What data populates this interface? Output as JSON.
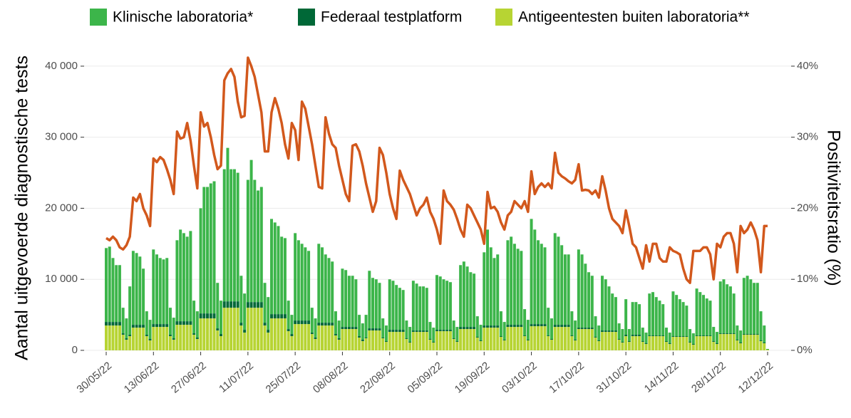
{
  "chart_data": {
    "type": "bar",
    "ylabel": "Aantal uitgevoerde diagnostische tests",
    "y2label": "Positiviteitsratio (%)",
    "categories": [
      "30/05/22",
      null,
      null,
      null,
      null,
      null,
      null,
      null,
      null,
      null,
      null,
      null,
      null,
      null,
      "13/06/22",
      null,
      null,
      null,
      null,
      null,
      null,
      null,
      null,
      null,
      null,
      null,
      null,
      null,
      "27/06/22",
      null,
      null,
      null,
      null,
      null,
      null,
      null,
      null,
      null,
      null,
      null,
      null,
      null,
      "11/07/22",
      null,
      null,
      null,
      null,
      null,
      null,
      null,
      null,
      null,
      null,
      null,
      null,
      null,
      "25/07/22",
      null,
      null,
      null,
      null,
      null,
      null,
      null,
      null,
      null,
      null,
      null,
      null,
      null,
      "08/08/22",
      null,
      null,
      null,
      null,
      null,
      null,
      null,
      null,
      null,
      null,
      null,
      null,
      null,
      "22/08/22",
      null,
      null,
      null,
      null,
      null,
      null,
      null,
      null,
      null,
      null,
      null,
      null,
      null,
      "05/09/22",
      null,
      null,
      null,
      null,
      null,
      null,
      null,
      null,
      null,
      null,
      null,
      null,
      null,
      "19/09/22",
      null,
      null,
      null,
      null,
      null,
      null,
      null,
      null,
      null,
      null,
      null,
      null,
      null,
      "03/10/22",
      null,
      null,
      null,
      null,
      null,
      null,
      null,
      null,
      null,
      null,
      null,
      null,
      null,
      "17/10/22",
      null,
      null,
      null,
      null,
      null,
      null,
      null,
      null,
      null,
      null,
      null,
      null,
      null,
      "31/10/22",
      null,
      null,
      null,
      null,
      null,
      null,
      null,
      null,
      null,
      null,
      null,
      null,
      null,
      "14/11/22",
      null,
      null,
      null,
      null,
      null,
      null,
      null,
      null,
      null,
      null,
      null,
      null,
      null,
      "28/11/22",
      null,
      null,
      null,
      null,
      null,
      null,
      null,
      null,
      null,
      null,
      null,
      null,
      null,
      "12/12/22"
    ],
    "series": [
      {
        "name": "Klinische laboratoria*",
        "color": "#3cb54a",
        "values": [
          10400,
          10600,
          9000,
          8000,
          8000,
          3600,
          2800,
          6800,
          10400,
          10100,
          9600,
          7900,
          3300,
          2700,
          10500,
          9800,
          9300,
          9100,
          9300,
          3800,
          2900,
          11400,
          12900,
          12400,
          11900,
          12700,
          4600,
          3700,
          14800,
          17800,
          17800,
          18300,
          18600,
          6400,
          4700,
          18600,
          21600,
          18600,
          18600,
          18100,
          6600,
          5100,
          17200,
          20000,
          17200,
          15700,
          16200,
          5600,
          4600,
          13400,
          12900,
          12400,
          10900,
          10700,
          4000,
          2700,
          12300,
          11300,
          10800,
          10300,
          9800,
          3500,
          2700,
          11100,
          10600,
          9600,
          9100,
          8600,
          3200,
          2500,
          8200,
          8000,
          7200,
          7200,
          6700,
          3000,
          2300,
          3200,
          8100,
          7100,
          6900,
          6400,
          2700,
          2200,
          7100,
          6900,
          6300,
          5900,
          5600,
          2500,
          2100,
          7000,
          6600,
          6200,
          6200,
          6000,
          2400,
          2000,
          7700,
          7500,
          7100,
          6900,
          6700,
          2500,
          2000,
          8700,
          9200,
          8500,
          7700,
          7500,
          2900,
          2200,
          10300,
          13500,
          11000,
          9500,
          10000,
          3500,
          2500,
          11900,
          12400,
          11400,
          10700,
          10400,
          3700,
          2800,
          14800,
          13300,
          11800,
          11300,
          10800,
          3900,
          2900,
          12900,
          12400,
          11200,
          9900,
          9900,
          3400,
          2700,
          11000,
          10300,
          9000,
          7800,
          7300,
          2900,
          2100,
          7700,
          7200,
          6200,
          5200,
          4700,
          2200,
          1800,
          5000,
          1700,
          4600,
          4600,
          4300,
          1900,
          1500,
          5900,
          6100,
          5400,
          4900,
          4400,
          1900,
          1500,
          6300,
          5800,
          5200,
          4800,
          4300,
          1800,
          1500,
          6600,
          6100,
          5700,
          5200,
          4900,
          2000,
          1600,
          7300,
          7600,
          6900,
          6600,
          5600,
          2000,
          1700,
          7900,
          8200,
          7700,
          7200,
          7200,
          4100,
          2400,
          100
        ]
      },
      {
        "name": "Federaal testplatform",
        "color": "#006837",
        "values": [
          500,
          500,
          500,
          500,
          500,
          200,
          200,
          200,
          400,
          400,
          400,
          400,
          200,
          200,
          400,
          400,
          400,
          400,
          400,
          200,
          200,
          500,
          500,
          500,
          500,
          500,
          200,
          200,
          700,
          700,
          700,
          700,
          700,
          300,
          300,
          900,
          900,
          900,
          900,
          900,
          400,
          400,
          800,
          800,
          800,
          800,
          800,
          400,
          400,
          600,
          600,
          600,
          600,
          600,
          300,
          300,
          500,
          500,
          500,
          500,
          500,
          200,
          200,
          400,
          400,
          400,
          400,
          400,
          200,
          200,
          300,
          300,
          300,
          300,
          300,
          200,
          200,
          100,
          300,
          300,
          300,
          300,
          100,
          100,
          300,
          300,
          300,
          300,
          300,
          100,
          100,
          200,
          200,
          200,
          200,
          200,
          100,
          100,
          200,
          200,
          200,
          200,
          200,
          100,
          100,
          300,
          300,
          300,
          300,
          300,
          100,
          100,
          300,
          300,
          300,
          300,
          300,
          100,
          100,
          300,
          300,
          300,
          300,
          300,
          100,
          100,
          300,
          300,
          300,
          300,
          300,
          100,
          100,
          300,
          300,
          300,
          300,
          300,
          100,
          100,
          200,
          200,
          200,
          200,
          200,
          100,
          100,
          200,
          200,
          200,
          200,
          200,
          100,
          100,
          200,
          100,
          200,
          200,
          200,
          100,
          100,
          100,
          100,
          100,
          100,
          100,
          100,
          100,
          100,
          100,
          100,
          100,
          100,
          100,
          100,
          100,
          100,
          100,
          100,
          100,
          100,
          100,
          100,
          100,
          100,
          100,
          100,
          100,
          100,
          100,
          100,
          100,
          100,
          100,
          100,
          100,
          0
        ]
      },
      {
        "name": "Antigeentesten buiten laboratoria**",
        "color": "#b7d433",
        "values": [
          3500,
          3500,
          3500,
          3500,
          3500,
          2200,
          1500,
          2000,
          3200,
          3200,
          3200,
          3200,
          2000,
          1400,
          3300,
          3300,
          3300,
          3300,
          3300,
          2000,
          1500,
          3600,
          3600,
          3600,
          3600,
          3600,
          2200,
          1600,
          4500,
          4500,
          4500,
          4500,
          4500,
          2800,
          2000,
          6000,
          6000,
          6000,
          6000,
          6000,
          3500,
          2500,
          6000,
          6000,
          6000,
          6000,
          6000,
          3500,
          2500,
          4500,
          4500,
          4500,
          4500,
          4500,
          2700,
          2000,
          3700,
          3700,
          3700,
          3700,
          3700,
          2300,
          1600,
          3500,
          3500,
          3500,
          3500,
          3500,
          2100,
          1500,
          3000,
          3000,
          3000,
          3000,
          3000,
          1800,
          1300,
          1700,
          2800,
          2800,
          2800,
          2800,
          1700,
          1200,
          2600,
          2600,
          2600,
          2600,
          2600,
          1600,
          1100,
          2600,
          2600,
          2600,
          2600,
          2600,
          1500,
          1100,
          2700,
          2700,
          2700,
          2700,
          2700,
          1600,
          1200,
          3000,
          3000,
          3000,
          3000,
          3000,
          1800,
          1300,
          3200,
          3200,
          3200,
          3200,
          3200,
          1900,
          1400,
          3300,
          3300,
          3300,
          3300,
          3300,
          2000,
          1400,
          3400,
          3400,
          3400,
          3400,
          3400,
          2000,
          1500,
          3300,
          3300,
          3300,
          3300,
          3300,
          2000,
          1400,
          3000,
          3000,
          3000,
          3000,
          3000,
          1800,
          1300,
          2600,
          2600,
          2600,
          2600,
          2600,
          1500,
          1100,
          2000,
          1200,
          2000,
          2000,
          2000,
          1200,
          900,
          2000,
          2000,
          2000,
          2000,
          2000,
          1200,
          900,
          1900,
          1900,
          1900,
          1900,
          1900,
          1100,
          800,
          2000,
          2000,
          2000,
          2000,
          2000,
          1200,
          900,
          2300,
          2300,
          2300,
          2300,
          2300,
          1400,
          1000,
          2200,
          2200,
          2200,
          2200,
          2200,
          1300,
          1000,
          100
        ]
      },
      {
        "type": "line",
        "axis": "y2",
        "color": "#d2581c",
        "values": [
          15.8,
          15.5,
          16.0,
          15.5,
          14.5,
          14.2,
          14.8,
          16.0,
          21.5,
          21.0,
          22.0,
          20.0,
          19.0,
          17.5,
          27.0,
          26.5,
          27.2,
          26.8,
          25.5,
          24.0,
          22.0,
          30.8,
          29.8,
          30.0,
          32.0,
          29.5,
          26.0,
          22.8,
          33.5,
          31.5,
          32.0,
          30.0,
          27.5,
          25.5,
          26.0,
          38.0,
          39.0,
          39.6,
          38.5,
          35.0,
          32.8,
          33.0,
          41.2,
          40.0,
          38.5,
          36.0,
          33.5,
          28.0,
          28.0,
          33.5,
          35.5,
          34.0,
          32.0,
          29.0,
          27.0,
          32.0,
          31.0,
          26.8,
          35.0,
          34.0,
          31.5,
          29.0,
          26.0,
          23.0,
          22.8,
          32.8,
          30.5,
          29.0,
          28.5,
          26.0,
          24.0,
          22.0,
          21.0,
          28.8,
          29.0,
          28.0,
          26.0,
          23.5,
          21.5,
          19.5,
          21.0,
          28.5,
          27.5,
          25.0,
          22.0,
          20.0,
          18.5,
          25.3,
          24.0,
          23.0,
          22.0,
          20.5,
          19.0,
          20.0,
          20.5,
          21.5,
          19.5,
          18.5,
          17.0,
          15.0,
          22.5,
          21.0,
          20.5,
          19.8,
          18.5,
          17.0,
          16.0,
          20.5,
          20.0,
          19.0,
          18.0,
          17.0,
          15.0,
          22.3,
          20.0,
          20.2,
          19.5,
          18.0,
          17.0,
          19.0,
          19.5,
          21.0,
          20.5,
          20.0,
          21.0,
          19.5,
          25.2,
          22.0,
          23.0,
          23.5,
          23.0,
          23.5,
          22.8,
          27.8,
          25.0,
          24.5,
          24.2,
          23.8,
          23.5,
          24.0,
          26.2,
          22.5,
          22.6,
          22.5,
          22.0,
          22.5,
          21.5,
          24.5,
          22.5,
          20.0,
          18.5,
          18.0,
          17.5,
          16.5,
          19.7,
          17.5,
          15.0,
          14.5,
          13.0,
          11.5,
          14.8,
          12.5,
          15.0,
          15.0,
          13.0,
          12.5,
          12.5,
          14.5,
          14.0,
          13.8,
          13.5,
          11.5,
          10.0,
          9.5,
          14.0,
          14.0,
          14.0,
          14.5,
          14.5,
          13.5,
          10.0,
          15.0,
          14.5,
          16.0,
          16.5,
          16.5,
          15.0,
          11.0,
          17.5,
          16.5,
          17.0,
          18.0,
          17.0,
          15.5,
          11.0,
          17.5,
          17.5
        ]
      }
    ],
    "ylim": [
      0,
      43500
    ],
    "yticks": [
      0,
      {
        "value": 10000,
        "label": "10 000"
      },
      {
        "value": 20000,
        "label": "20 000"
      },
      {
        "value": 30000,
        "label": "30 000"
      },
      {
        "value": 40000,
        "label": "40 000"
      }
    ],
    "y2lim": [
      0,
      43.5
    ],
    "y2ticks": [
      {
        "value": 0,
        "label": "0%"
      },
      {
        "value": 10,
        "label": "10%"
      },
      {
        "value": 20,
        "label": "20%"
      },
      {
        "value": 30,
        "label": "30%"
      },
      {
        "value": 40,
        "label": "40%"
      }
    ],
    "grid": true,
    "stacked": true,
    "legend": "top"
  }
}
